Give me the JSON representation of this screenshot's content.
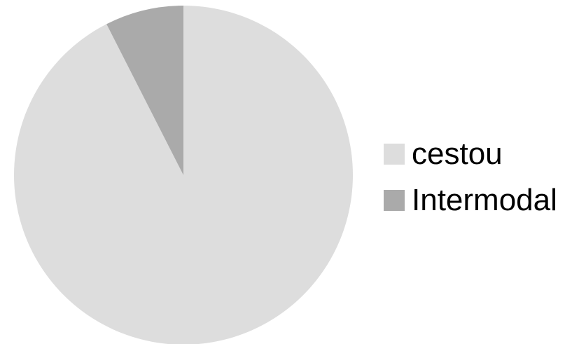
{
  "chart_data": {
    "type": "pie",
    "title": "",
    "categories": [
      "cestou",
      "Intermodal"
    ],
    "values": [
      92.5,
      7.5
    ],
    "colors": [
      "#dddddd",
      "#aaaaaa"
    ],
    "start_angle_deg": 0,
    "direction": "clockwise",
    "legend": "right"
  }
}
